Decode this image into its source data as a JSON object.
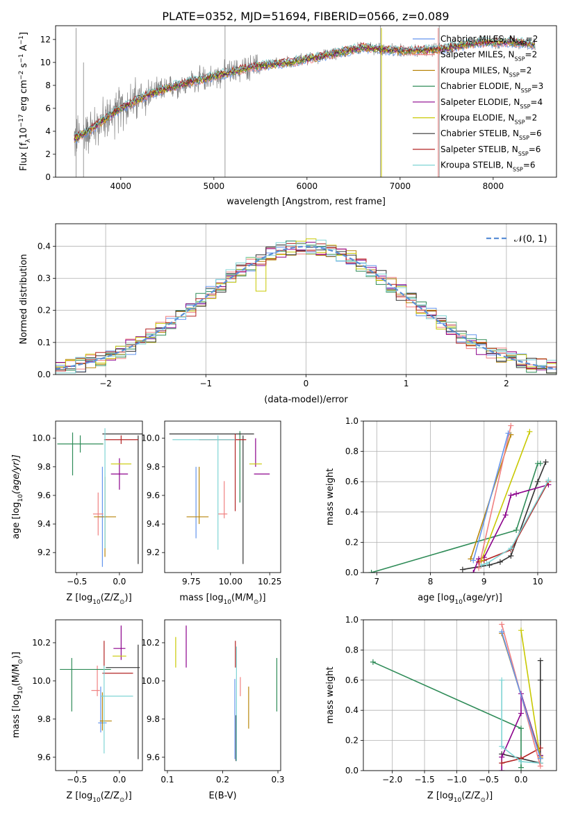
{
  "figure": {
    "title": "PLATE=0352, MJD=51694, FIBERID=0566, z=0.089"
  },
  "legend_spectrum": [
    {
      "label": "Chabrier MILES, N",
      "sub": "SSP",
      "val": "=2",
      "color": "#6495ed"
    },
    {
      "label": "Salpeter MILES, N",
      "sub": "SSP",
      "val": "=2",
      "color": "#f08080"
    },
    {
      "label": "Kroupa MILES, N",
      "sub": "SSP",
      "val": "=2",
      "color": "#b8860b"
    },
    {
      "label": "Chabrier ELODIE, N",
      "sub": "SSP",
      "val": "=3",
      "color": "#2e8b57"
    },
    {
      "label": "Salpeter ELODIE, N",
      "sub": "SSP",
      "val": "=4",
      "color": "#8b008b"
    },
    {
      "label": "Kroupa ELODIE, N",
      "sub": "SSP",
      "val": "=2",
      "color": "#c8c800"
    },
    {
      "label": "Chabrier STELIB, N",
      "sub": "SSP",
      "val": "=6",
      "color": "#333333"
    },
    {
      "label": "Salpeter STELIB, N",
      "sub": "SSP",
      "val": "=6",
      "color": "#b22222"
    },
    {
      "label": "Kroupa STELIB, N",
      "sub": "SSP",
      "val": "=6",
      "color": "#7fd4d4"
    }
  ],
  "legend_resid": {
    "label": "𝒩(0, 1)",
    "color": "#5b8fd6"
  },
  "chart_data": [
    {
      "id": "spectrum",
      "type": "line",
      "xlabel": "wavelength [Angstrom, rest frame]",
      "ylabel_main": "Flux [f",
      "ylabel_sub": "λ",
      "ylabel_rest": "10",
      "ylabel_exp1": "−17",
      "ylabel_mid": " erg cm",
      "ylabel_exp2": "−2",
      "ylabel_mid2": " s",
      "ylabel_exp3": "−1",
      "ylabel_end": " A",
      "ylabel_exp4": "−1",
      "ylabel_close": "]",
      "xlim": [
        3300,
        8680
      ],
      "ylim": [
        0,
        13.2
      ],
      "xticks": [
        4000,
        5000,
        6000,
        7000,
        8000
      ],
      "yticks": [
        0,
        2,
        4,
        6,
        8,
        10,
        12
      ],
      "continuum": {
        "x": [
          3500,
          3700,
          4000,
          4300,
          4600,
          5000,
          5400,
          5800,
          6200,
          6600,
          7000,
          7400,
          7800,
          8200,
          8500
        ],
        "y": [
          3.3,
          4.3,
          6.0,
          7.2,
          8.0,
          8.8,
          9.6,
          10.0,
          10.6,
          11.3,
          11.0,
          11.1,
          11.7,
          11.8,
          11.5
        ]
      }
    },
    {
      "id": "residuals",
      "type": "histogram",
      "xlabel": "(data-model)/error",
      "ylabel": "Normed distribution",
      "xlim": [
        -2.5,
        2.5
      ],
      "ylim": [
        0,
        0.47
      ],
      "xticks": [
        -2,
        -1,
        0,
        1,
        2
      ],
      "yticks": [
        0.0,
        0.1,
        0.2,
        0.3,
        0.4
      ],
      "bin_width": 0.1
    },
    {
      "id": "age-vs-Z",
      "type": "scatter",
      "xlabel": "Z [log",
      "xlabel_sub": "10",
      "xlabel_rest": "(Z/Z",
      "xlabel_sub2": "⊙",
      "xlabel_end": ")]",
      "ylabel": "age  [log10(age/yr)]",
      "xlim": [
        -0.75,
        0.27
      ],
      "ylim": [
        9.06,
        10.12
      ],
      "xticks": [
        -0.5,
        0.0
      ],
      "yticks": [
        9.2,
        9.4,
        9.6,
        9.8,
        10.0
      ],
      "points": [
        {
          "c": "#6495ed",
          "x": -0.2,
          "xe": 0.05,
          "y": 9.45,
          "ye": 0.35
        },
        {
          "c": "#f08080",
          "x": -0.25,
          "xe": 0.06,
          "y": 9.47,
          "ye": 0.15
        },
        {
          "c": "#b8860b",
          "x": -0.17,
          "xe": 0.13,
          "y": 9.45,
          "ye": 0.28
        },
        {
          "c": "#2e8b57",
          "x": -0.46,
          "xe": 0.27,
          "y": 9.96,
          "ye": 0.06
        },
        {
          "c": "#2e8b57",
          "x": -0.55,
          "xe": 0.0,
          "y": 9.89,
          "ye": 0.15
        },
        {
          "c": "#8b008b",
          "x": 0.0,
          "xe": 0.1,
          "y": 9.75,
          "ye": 0.11
        },
        {
          "c": "#c8c800",
          "x": 0.02,
          "xe": 0.12,
          "y": 9.82,
          "ye": 0.0
        },
        {
          "c": "#333333",
          "x": 0.05,
          "xe": 0.25,
          "y": 10.03,
          "ye": 0.0
        },
        {
          "c": "#333333",
          "x": 0.22,
          "xe": 0.0,
          "y": 9.57,
          "ye": 0.45
        },
        {
          "c": "#b22222",
          "x": 0.02,
          "xe": 0.2,
          "y": 9.99,
          "ye": 0.03
        },
        {
          "c": "#7fd4d4",
          "x": -0.17,
          "xe": 0.0,
          "y": 9.65,
          "ye": 0.42
        }
      ]
    },
    {
      "id": "age-vs-mass",
      "type": "scatter",
      "xlabel": "mass [log",
      "xlabel_sub": "10",
      "xlabel_rest": "(M/M",
      "xlabel_sub2": "⊙",
      "xlabel_end": ")]",
      "xlim": [
        9.58,
        10.32
      ],
      "ylim": [
        9.06,
        10.12
      ],
      "xticks": [
        9.75,
        10.0,
        10.25
      ],
      "yticks": [
        9.2,
        9.4,
        9.6,
        9.8,
        10.0
      ],
      "points": [
        {
          "c": "#6495ed",
          "x": 9.78,
          "xe": 0.0,
          "y": 9.55,
          "ye": 0.25
        },
        {
          "c": "#f08080",
          "x": 9.95,
          "xe": 0.03,
          "y": 9.47,
          "ye": 0.0
        },
        {
          "c": "#f08080",
          "x": 9.96,
          "xe": 0.0,
          "y": 9.57,
          "ye": 0.13
        },
        {
          "c": "#b8860b",
          "x": 9.79,
          "xe": 0.07,
          "y": 9.45,
          "ye": 0.0
        },
        {
          "c": "#b8860b",
          "x": 9.8,
          "xe": 0.0,
          "y": 9.6,
          "ye": 0.2
        },
        {
          "c": "#2e8b57",
          "x": 10.06,
          "xe": 0.0,
          "y": 9.8,
          "ye": 0.25
        },
        {
          "c": "#8b008b",
          "x": 10.2,
          "xe": 0.05,
          "y": 9.75,
          "ye": 0.0
        },
        {
          "c": "#8b008b",
          "x": 10.16,
          "xe": 0.0,
          "y": 9.9,
          "ye": 0.1
        },
        {
          "c": "#c8c800",
          "x": 10.16,
          "xe": 0.04,
          "y": 9.82,
          "ye": 0.0
        },
        {
          "c": "#333333",
          "x": 9.88,
          "xe": 0.27,
          "y": 10.03,
          "ye": 0.0
        },
        {
          "c": "#333333",
          "x": 10.08,
          "xe": 0.0,
          "y": 9.57,
          "ye": 0.45
        },
        {
          "c": "#b22222",
          "x": 9.95,
          "xe": 0.15,
          "y": 9.99,
          "ye": 0.0
        },
        {
          "c": "#b22222",
          "x": 10.03,
          "xe": 0.0,
          "y": 9.76,
          "ye": 0.27
        },
        {
          "c": "#7fd4d4",
          "x": 9.83,
          "xe": 0.2,
          "y": 9.99,
          "ye": 0.0
        },
        {
          "c": "#7fd4d4",
          "x": 9.92,
          "xe": 0.0,
          "y": 9.62,
          "ye": 0.4
        }
      ]
    },
    {
      "id": "weight-vs-age",
      "type": "line",
      "xlabel": "age  [log",
      "xlabel_sub": "10",
      "xlabel_rest": "(age/yr)]",
      "ylabel": "mass weight",
      "xlim": [
        6.75,
        10.35
      ],
      "ylim": [
        0,
        1.0
      ],
      "xticks": [
        7,
        8,
        9,
        10
      ],
      "yticks": [
        0.0,
        0.2,
        0.4,
        0.6,
        0.8,
        1.0
      ],
      "series": [
        {
          "c": "#2e8b57",
          "x": [
            6.9,
            9.6,
            10.0,
            10.05
          ],
          "y": [
            0.0,
            0.28,
            0.72,
            0.72
          ]
        },
        {
          "c": "#333333",
          "x": [
            8.6,
            9.1,
            9.3,
            9.5,
            10.0,
            10.15
          ],
          "y": [
            0.02,
            0.05,
            0.07,
            0.11,
            0.6,
            0.73
          ]
        },
        {
          "c": "#8b008b",
          "x": [
            8.8,
            8.9,
            9.0,
            9.4,
            9.5,
            9.6,
            10.2
          ],
          "y": [
            0.0,
            0.09,
            0.1,
            0.38,
            0.51,
            0.52,
            0.58
          ]
        },
        {
          "c": "#b22222",
          "x": [
            8.9,
            9.0,
            9.5,
            10.2
          ],
          "y": [
            0.07,
            0.08,
            0.15,
            0.6
          ]
        },
        {
          "c": "#7fd4d4",
          "x": [
            8.95,
            9.05,
            9.5,
            10.2
          ],
          "y": [
            0.05,
            0.06,
            0.16,
            0.61
          ]
        },
        {
          "c": "#c8c800",
          "x": [
            8.95,
            9.85
          ],
          "y": [
            0.08,
            0.93
          ]
        },
        {
          "c": "#b8860b",
          "x": [
            8.75,
            9.5
          ],
          "y": [
            0.09,
            0.91
          ]
        },
        {
          "c": "#f08080",
          "x": [
            8.9,
            9.5
          ],
          "y": [
            0.03,
            0.97
          ]
        },
        {
          "c": "#6495ed",
          "x": [
            8.8,
            9.45
          ],
          "y": [
            0.08,
            0.92
          ]
        }
      ]
    },
    {
      "id": "mass-vs-Z",
      "type": "scatter",
      "xlabel": "Z [log",
      "xlabel_sub": "10",
      "xlabel_rest": "(Z/Z",
      "xlabel_sub2": "⊙",
      "xlabel_end": ")]",
      "ylabel": "mass [log10(M/M⊙)]",
      "xlim": [
        -0.75,
        0.27
      ],
      "ylim": [
        9.53,
        10.32
      ],
      "xticks": [
        -0.5,
        0.0
      ],
      "yticks": [
        9.6,
        9.8,
        10.0,
        10.2
      ],
      "points": [
        {
          "c": "#6495ed",
          "x": -0.2,
          "xe": 0.05,
          "y": 9.78,
          "ye": 0.0
        },
        {
          "c": "#6495ed",
          "x": -0.22,
          "xe": 0.0,
          "y": 9.85,
          "ye": 0.12
        },
        {
          "c": "#f08080",
          "x": -0.28,
          "xe": 0.05,
          "y": 9.95,
          "ye": 0.0
        },
        {
          "c": "#f08080",
          "x": -0.26,
          "xe": 0.0,
          "y": 10.0,
          "ye": 0.08
        },
        {
          "c": "#b8860b",
          "x": -0.16,
          "xe": 0.07,
          "y": 9.79,
          "ye": 0.0
        },
        {
          "c": "#b8860b",
          "x": -0.2,
          "xe": 0.0,
          "y": 9.84,
          "ye": 0.1
        },
        {
          "c": "#2e8b57",
          "x": -0.4,
          "xe": 0.3,
          "y": 10.06,
          "ye": 0.0
        },
        {
          "c": "#2e8b57",
          "x": -0.56,
          "xe": 0.0,
          "y": 9.98,
          "ye": 0.14
        },
        {
          "c": "#8b008b",
          "x": 0.0,
          "xe": 0.07,
          "y": 10.17,
          "ye": 0.0
        },
        {
          "c": "#8b008b",
          "x": 0.02,
          "xe": 0.0,
          "y": 10.2,
          "ye": 0.09
        },
        {
          "c": "#c8c800",
          "x": 0.0,
          "xe": 0.08,
          "y": 10.13,
          "ye": 0.0
        },
        {
          "c": "#333333",
          "x": 0.04,
          "xe": 0.2,
          "y": 10.07,
          "ye": 0.0
        },
        {
          "c": "#333333",
          "x": 0.22,
          "xe": 0.0,
          "y": 9.89,
          "ye": 0.3
        },
        {
          "c": "#b22222",
          "x": -0.02,
          "xe": 0.18,
          "y": 10.04,
          "ye": 0.0
        },
        {
          "c": "#b22222",
          "x": -0.18,
          "xe": 0.0,
          "y": 10.14,
          "ye": 0.07
        },
        {
          "c": "#7fd4d4",
          "x": -0.03,
          "xe": 0.19,
          "y": 9.92,
          "ye": 0.0
        },
        {
          "c": "#7fd4d4",
          "x": -0.18,
          "xe": 0.0,
          "y": 9.85,
          "ye": 0.23
        }
      ]
    },
    {
      "id": "mass-vs-EBV",
      "type": "scatter",
      "xlabel": "E(B-V)",
      "xlim": [
        0.095,
        0.305
      ],
      "ylim": [
        9.53,
        10.32
      ],
      "xticks": [
        0.1,
        0.2,
        0.3
      ],
      "yticks": [
        9.6,
        9.8,
        10.0,
        10.2
      ],
      "points": [
        {
          "c": "#c8c800",
          "x": 0.115,
          "xe": 0.0,
          "y": 10.15,
          "ye": 0.08
        },
        {
          "c": "#8b008b",
          "x": 0.134,
          "xe": 0.0,
          "y": 10.18,
          "ye": 0.11
        },
        {
          "c": "#b22222",
          "x": 0.223,
          "xe": 0.0,
          "y": 10.14,
          "ye": 0.07
        },
        {
          "c": "#6495ed",
          "x": 0.222,
          "xe": 0.0,
          "y": 9.8,
          "ye": 0.21
        },
        {
          "c": "#333333",
          "x": 0.224,
          "xe": 0.0,
          "y": 9.7,
          "ye": 0.12
        },
        {
          "c": "#7fd4d4",
          "x": 0.225,
          "xe": 0.0,
          "y": 9.88,
          "ye": 0.3
        },
        {
          "c": "#f08080",
          "x": 0.232,
          "xe": 0.0,
          "y": 9.97,
          "ye": 0.05
        },
        {
          "c": "#b8860b",
          "x": 0.247,
          "xe": 0.0,
          "y": 9.86,
          "ye": 0.11
        },
        {
          "c": "#2e8b57",
          "x": 0.298,
          "xe": 0.0,
          "y": 9.98,
          "ye": 0.14
        }
      ]
    },
    {
      "id": "weight-vs-Z",
      "type": "line",
      "xlabel": "Z [log",
      "xlabel_sub": "10",
      "xlabel_rest": "(Z/Z",
      "xlabel_sub2": "⊙",
      "xlabel_end": ")]",
      "ylabel": "mass weight",
      "xlim": [
        -2.45,
        0.55
      ],
      "ylim": [
        0,
        1.0
      ],
      "xticks": [
        -2.0,
        -1.5,
        -1.0,
        -0.5,
        0.0
      ],
      "yticks": [
        0.0,
        0.2,
        0.4,
        0.6,
        0.8,
        1.0
      ],
      "series": [
        {
          "c": "#2e8b57",
          "x": [
            -2.3,
            0.0,
            0.0
          ],
          "y": [
            0.72,
            0.28,
            0.02
          ]
        },
        {
          "c": "#333333",
          "x": [
            -0.3,
            0.3,
            0.3,
            0.3,
            0.3
          ],
          "y": [
            0.11,
            0.05,
            0.1,
            0.6,
            0.73
          ]
        },
        {
          "c": "#8b008b",
          "x": [
            -0.3,
            -0.3,
            0.0,
            0.0,
            0.3
          ],
          "y": [
            0.0,
            0.09,
            0.38,
            0.51,
            0.1
          ]
        },
        {
          "c": "#b22222",
          "x": [
            -0.3,
            0.0,
            0.3
          ],
          "y": [
            0.05,
            0.08,
            0.15
          ]
        },
        {
          "c": "#7fd4d4",
          "x": [
            -0.3,
            -0.3,
            0.0,
            0.3
          ],
          "y": [
            0.6,
            0.16,
            0.06,
            0.05
          ]
        },
        {
          "c": "#c8c800",
          "x": [
            0.0,
            0.3
          ],
          "y": [
            0.93,
            0.08
          ]
        },
        {
          "c": "#b8860b",
          "x": [
            -0.3,
            0.3
          ],
          "y": [
            0.91,
            0.09
          ]
        },
        {
          "c": "#f08080",
          "x": [
            -0.3,
            0.3
          ],
          "y": [
            0.97,
            0.03
          ]
        },
        {
          "c": "#6495ed",
          "x": [
            -0.3,
            0.3
          ],
          "y": [
            0.92,
            0.08
          ]
        }
      ]
    }
  ]
}
